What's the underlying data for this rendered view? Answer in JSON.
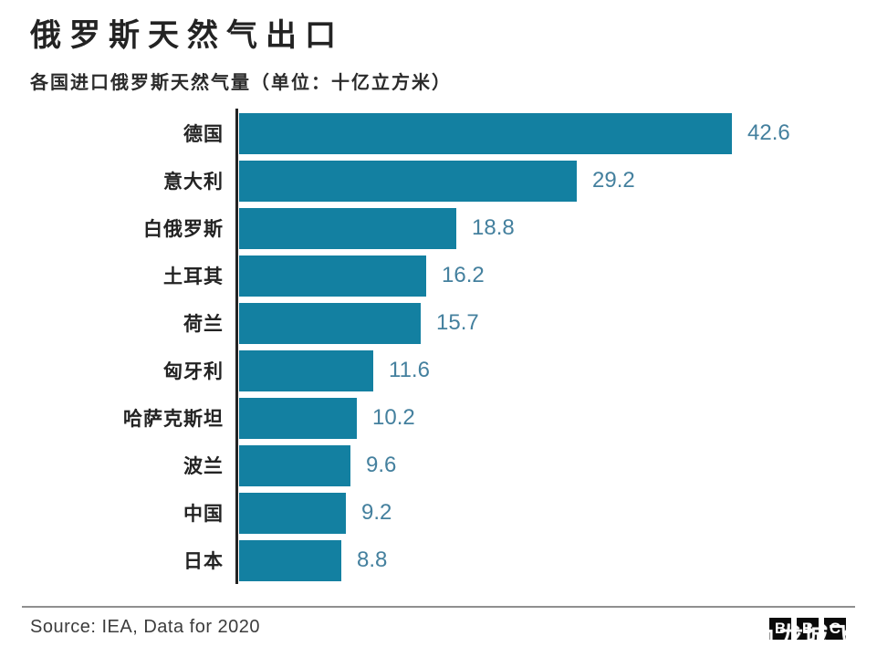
{
  "header": {
    "title": "俄罗斯天然气出口",
    "subtitle": "各国进口俄罗斯天然气量（单位：十亿立方米）"
  },
  "chart_data": {
    "type": "bar",
    "orientation": "horizontal",
    "title": "俄罗斯天然气出口",
    "subtitle": "各国进口俄罗斯天然气量（单位：十亿立方米）",
    "unit": "十亿立方米",
    "categories": [
      "德国",
      "意大利",
      "白俄罗斯",
      "土耳其",
      "荷兰",
      "匈牙利",
      "哈萨克斯坦",
      "波兰",
      "中国",
      "日本"
    ],
    "values": [
      42.6,
      29.2,
      18.8,
      16.2,
      15.7,
      11.6,
      10.2,
      9.6,
      9.2,
      8.8
    ],
    "value_labels": [
      "42.6",
      "29.2",
      "18.8",
      "16.2",
      "15.7",
      "11.6",
      "10.2",
      "9.6",
      "9.2",
      "8.8"
    ],
    "xlim": [
      0,
      45
    ],
    "grid": false,
    "legend": false,
    "bar_color": "#1380A1",
    "value_label_color": "#44809E",
    "axis_color": "#232323"
  },
  "footer": {
    "source": "Source: IEA, Data for 2020",
    "logo_letters": [
      "B",
      "B",
      "C"
    ],
    "watermark": "九龙城飞"
  }
}
